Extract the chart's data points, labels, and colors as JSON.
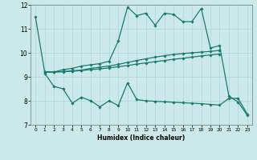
{
  "xlabel": "Humidex (Indice chaleur)",
  "xlim": [
    -0.5,
    23.5
  ],
  "ylim": [
    7,
    12
  ],
  "xticks": [
    0,
    1,
    2,
    3,
    4,
    5,
    6,
    7,
    8,
    9,
    10,
    11,
    12,
    13,
    14,
    15,
    16,
    17,
    18,
    19,
    20,
    21,
    22,
    23
  ],
  "yticks": [
    7,
    8,
    9,
    10,
    11,
    12
  ],
  "bg_color": "#cce9ea",
  "line_color": "#1a7a6e",
  "grid_color": "#b0d5d8",
  "line1_x": [
    0,
    1,
    2,
    3,
    4,
    5,
    6,
    7,
    8,
    9,
    10,
    11,
    12,
    13,
    14,
    15,
    16,
    17,
    18,
    19,
    20,
    21,
    22,
    23
  ],
  "line1_y": [
    11.5,
    9.2,
    9.2,
    9.3,
    9.35,
    9.45,
    9.5,
    9.55,
    9.65,
    10.5,
    11.9,
    11.55,
    11.65,
    11.15,
    11.65,
    11.6,
    11.3,
    11.3,
    11.85,
    10.2,
    10.3,
    8.2,
    7.95,
    7.4
  ],
  "line2_x": [
    1,
    2,
    3,
    4,
    5,
    6,
    7,
    8,
    9,
    10,
    11,
    12,
    13,
    14,
    15,
    16,
    17,
    18,
    19,
    20
  ],
  "line2_y": [
    9.2,
    9.2,
    9.22,
    9.25,
    9.28,
    9.35,
    9.4,
    9.45,
    9.52,
    9.6,
    9.68,
    9.75,
    9.82,
    9.88,
    9.93,
    9.97,
    10.0,
    10.03,
    10.06,
    10.1
  ],
  "line3_x": [
    1,
    2,
    3,
    4,
    5,
    6,
    7,
    8,
    9,
    10,
    11,
    12,
    13,
    14,
    15,
    16,
    17,
    18,
    19,
    20
  ],
  "line3_y": [
    9.2,
    9.2,
    9.21,
    9.23,
    9.26,
    9.3,
    9.33,
    9.37,
    9.42,
    9.47,
    9.53,
    9.58,
    9.63,
    9.68,
    9.73,
    9.77,
    9.82,
    9.87,
    9.91,
    9.95
  ],
  "line4_x": [
    1,
    2,
    3,
    4,
    5,
    6,
    7,
    8,
    9,
    10,
    11,
    12,
    13,
    14,
    15,
    16,
    17,
    18,
    19,
    20,
    21,
    22,
    23
  ],
  "line4_y": [
    9.15,
    8.6,
    8.5,
    7.9,
    8.15,
    8.0,
    7.75,
    8.0,
    7.8,
    8.75,
    8.05,
    8.0,
    7.98,
    7.96,
    7.94,
    7.92,
    7.9,
    7.88,
    7.85,
    7.82,
    8.1,
    8.1,
    7.45
  ]
}
